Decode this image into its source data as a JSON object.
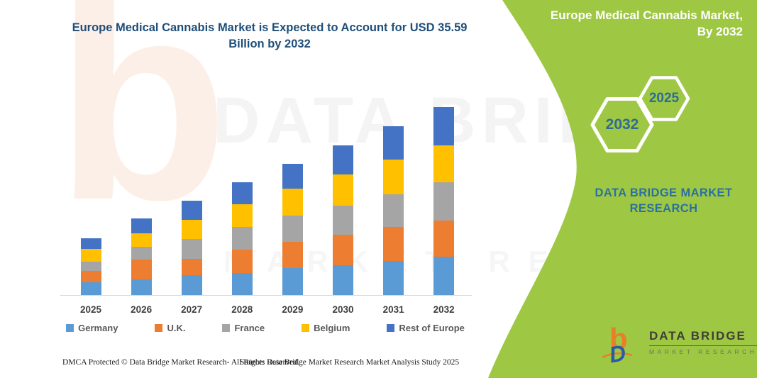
{
  "title": {
    "text": "Europe Medical Cannabis Market is Expected to Account for USD 35.59 Billion by 2032"
  },
  "panel": {
    "heading": "Europe Medical Cannabis Market, By 2032",
    "hex_back_year": "2032",
    "hex_front_year": "2025",
    "brand_line1": "DATA BRIDGE MARKET",
    "brand_line2": "RESEARCH",
    "green": "#9ec844"
  },
  "watermark": {
    "letter": "b",
    "line1": "DATA BRIDGE",
    "line2": "MARKET RESEARCH"
  },
  "logo": {
    "name": "DATA BRIDGE",
    "subtitle": "MARKET RESEARCH"
  },
  "footer": {
    "left": "DMCA Protected © Data Bridge Market Research-  All Rights Reserved.",
    "source": "Source: Data Bridge Market Research  Market Analysis Study 2025"
  },
  "chart_data": {
    "type": "bar",
    "stacked": true,
    "unit": "USD Billion",
    "categories": [
      "2025",
      "2026",
      "2027",
      "2028",
      "2029",
      "2030",
      "2031",
      "2032"
    ],
    "series": [
      {
        "name": "Germany",
        "color": "#5B9BD5",
        "values": [
          2.4,
          3.0,
          3.7,
          4.1,
          5.1,
          5.7,
          6.5,
          7.2
        ]
      },
      {
        "name": "U.K.",
        "color": "#ED7D31",
        "values": [
          2.2,
          3.7,
          3.2,
          4.5,
          5.0,
          5.7,
          6.4,
          6.9
        ]
      },
      {
        "name": "France",
        "color": "#A5A5A5",
        "values": [
          1.7,
          2.5,
          3.7,
          4.3,
          5.0,
          5.5,
          6.2,
          7.3
        ]
      },
      {
        "name": "Belgium",
        "color": "#FFC000",
        "values": [
          2.4,
          2.5,
          3.6,
          4.3,
          5.0,
          5.9,
          6.6,
          7.0
        ]
      },
      {
        "name": "Rest of Europe",
        "color": "#4472C4",
        "values": [
          2.1,
          2.8,
          3.7,
          4.2,
          4.7,
          5.6,
          6.3,
          7.2
        ]
      }
    ],
    "totals": [
      10.8,
      14.5,
      17.9,
      21.4,
      24.8,
      28.4,
      32.0,
      35.6
    ],
    "highlight_total_2032": 35.59,
    "ylim": [
      0,
      35.6
    ],
    "grid": false,
    "legend_position": "bottom"
  }
}
